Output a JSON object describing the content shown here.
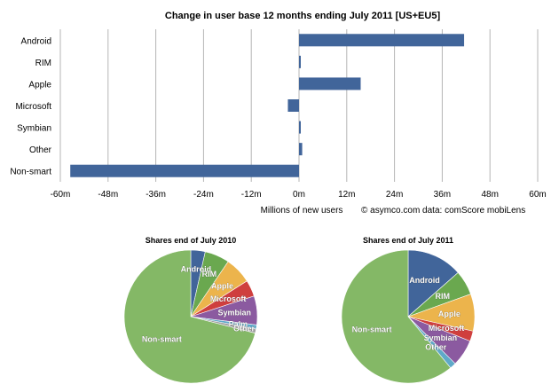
{
  "chart_data": [
    {
      "type": "bar",
      "orientation": "horizontal",
      "title": "Change in user base 12 months ending July 2011 [US+EU5]",
      "xlabel": "Millions of new users",
      "note": "© asymco.com data: comScore mobiLens",
      "categories": [
        "Android",
        "RIM",
        "Apple",
        "Microsoft",
        "Symbian",
        "Other",
        "Non-smart"
      ],
      "values": [
        41.5,
        0.3,
        15.5,
        -2.8,
        0.2,
        0.8,
        -57.5
      ],
      "xlim": [
        -60,
        60
      ],
      "ticks": [
        -60,
        -48,
        -36,
        -24,
        -12,
        0,
        12,
        24,
        36,
        48,
        60
      ],
      "tick_labels": [
        "-60m",
        "-48m",
        "-36m",
        "-24m",
        "-12m",
        "0m",
        "12m",
        "24m",
        "36m",
        "48m",
        "60m"
      ],
      "grid": true,
      "bar_color": "#41659a"
    },
    {
      "type": "pie",
      "title": "Shares end of July 2010",
      "slices": [
        {
          "label": "Android",
          "value": 3.5,
          "color": "#41659a"
        },
        {
          "label": "RIM",
          "value": 6.0,
          "color": "#6aa84f"
        },
        {
          "label": "Apple",
          "value": 6.5,
          "color": "#ecb44c"
        },
        {
          "label": "Microsoft",
          "value": 4.0,
          "color": "#cf3f3e"
        },
        {
          "label": "Symbian",
          "value": 7.0,
          "color": "#8b5aa0"
        },
        {
          "label": "Palm",
          "value": 1.0,
          "color": "#5fa9c9"
        },
        {
          "label": "Other",
          "value": 1.0,
          "color": "#a0a0a0"
        },
        {
          "label": "Non-smart",
          "value": 71.0,
          "color": "#84b866"
        }
      ]
    },
    {
      "type": "pie",
      "title": "Shares end of July 2011",
      "slices": [
        {
          "label": "Android",
          "value": 13.5,
          "color": "#41659a"
        },
        {
          "label": "RIM",
          "value": 6.0,
          "color": "#6aa84f"
        },
        {
          "label": "Apple",
          "value": 9.0,
          "color": "#ecb44c"
        },
        {
          "label": "Microsoft",
          "value": 2.5,
          "color": "#cf3f3e"
        },
        {
          "label": "Symbian",
          "value": 6.5,
          "color": "#8b5aa0"
        },
        {
          "label": "Other",
          "value": 1.5,
          "color": "#5fa9c9"
        },
        {
          "label": "Non-smart",
          "value": 61.0,
          "color": "#84b866"
        }
      ]
    }
  ]
}
